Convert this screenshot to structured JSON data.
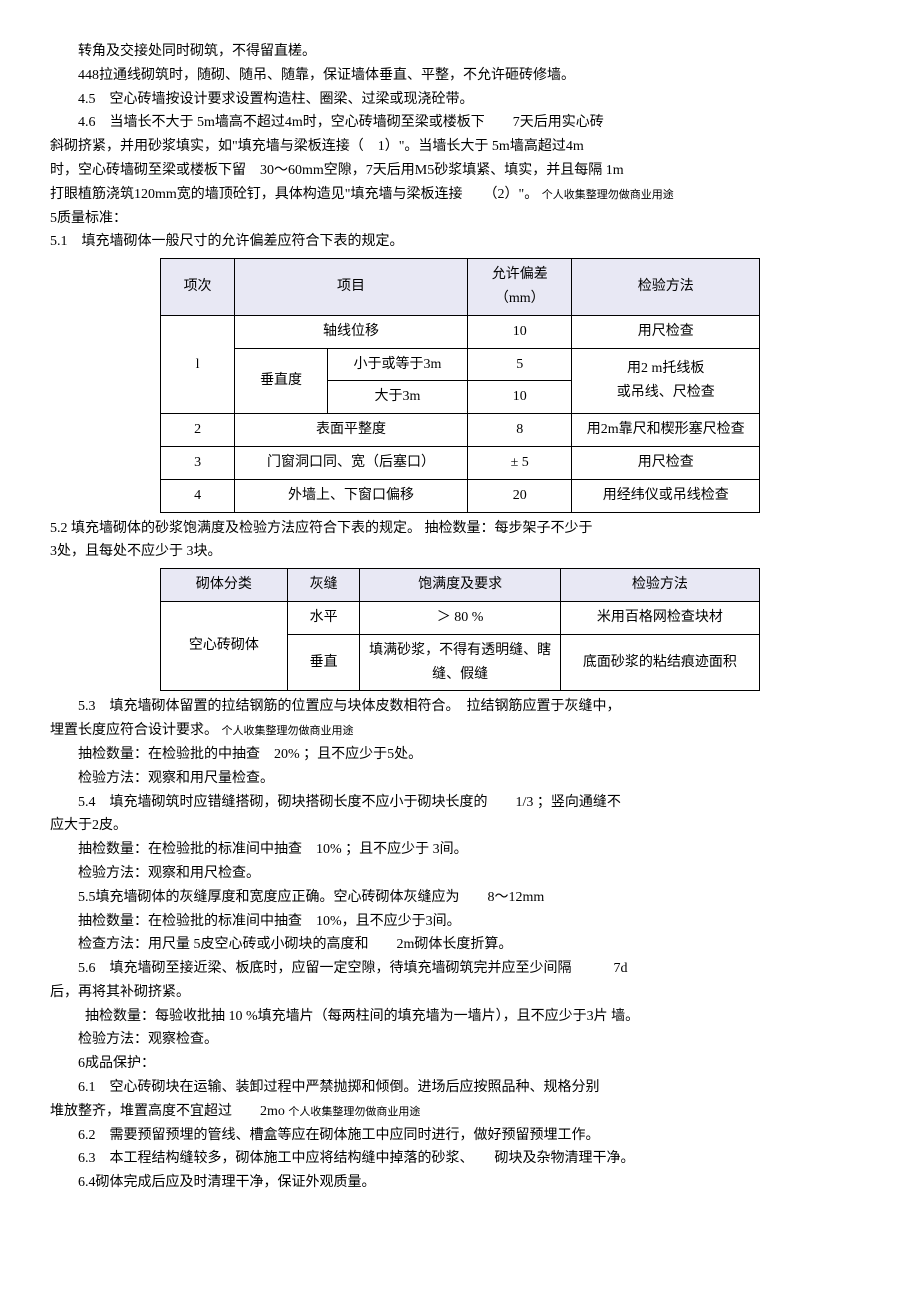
{
  "paragraphs": {
    "p1": "转角及交接处同时砌筑，不得留直槎。",
    "p2": "448拉通线砌筑时，随砌、随吊、随靠，保证墙体垂直、平整，不允许砸砖修墙。",
    "p3": "4.5　空心砖墙按设计要求设置构造柱、圈梁、过梁或现浇砼带。",
    "p4a": "4.6　当墙长不大于 5m墙高不超过4m时，空心砖墙砌至梁或楼板下　　7天后用实心砖",
    "p4b": "斜砌挤紧，并用砂浆填实，如\"填充墙与梁板连接（　1）\"。当墙长大于 5m墙高超过4m",
    "p4c": "时，空心砖墙砌至梁或楼板下留　30～60mm空隙，7天后用M5砂浆填紧、填实，并且每隔 1m",
    "p4d": "打眼植筋浇筑120mm宽的墙顶砼钉，具体构造见\"填充墙与梁板连接　　（2）\"。",
    "p4note": "个人收集整理勿做商业用途",
    "p5": "5质量标准：",
    "p6": "5.1　填充墙砌体一般尺寸的允许偏差应符合下表的规定。",
    "p7": "5.2 填充墙砌体的砂浆饱满度及检验方法应符合下表的规定。 抽检数量：每步架子不少于",
    "p7b": "3处，且每处不应少于 3块。",
    "p8a": "5.3　填充墙砌体留置的拉结钢筋的位置应与块体皮数相符合。　拉结钢筋应置于灰缝中，",
    "p8b": "埋置长度应符合设计要求。",
    "p8note": "个人收集整理勿做商业用途",
    "p9": "抽检数量：在检验批的中抽查　20% ；且不应少于5处。",
    "p10": "检验方法：观察和用尺量检查。",
    "p11a": "5.4　填充墙砌筑时应错缝搭砌，砌块搭砌长度不应小于砌块长度的　　1/3 ；竖向通缝不",
    "p11b": "应大于2皮。",
    "p12": "抽检数量：在检验批的标准间中抽查　10% ；且不应少于 3间。",
    "p13": "检验方法：观察和用尺检查。",
    "p14": "5.5填充墙砌体的灰缝厚度和宽度应正确。空心砖砌体灰缝应为　　8～12mm",
    "p15": "抽检数量：在检验批的标准间中抽查　10%，且不应少于3间。",
    "p16": "检查方法：用尺量 5皮空心砖或小砌块的高度和　　2m砌体长度折算。",
    "p17a": "5.6　填充墙砌至接近梁、板底时，应留一定空隙，待填充墙砌筑完并应至少间隔　　　7d",
    "p17b": "后，再将其补砌挤紧。",
    "p18": "抽检数量：每验收批抽 10 %填充墙片（每两柱间的填充墙为一墙片），且不应少于3片 墙。",
    "p19": "检验方法：观察检查。",
    "p20": "6成品保护：",
    "p21a": "6.1　空心砖砌块在运输、装卸过程中严禁抛掷和倾倒。进场后应按照品种、规格分别",
    "p21b": "堆放整齐，堆置高度不宜超过　　2mo",
    "p21note": "个人收集整理勿做商业用途",
    "p22": "6.2　需要预留预埋的管线、槽盒等应在砌体施工中应同时进行，做好预留预埋工作。",
    "p23": "6.3　本工程结构缝较多，砌体施工中应将结构缝中掉落的砂浆、　　砌块及杂物清理干净。",
    "p24": "6.4砌体完成后应及时清理干净，保证外观质量。"
  },
  "table1": {
    "headers": {
      "c1": "项次",
      "c2": "项目",
      "c3": "允许偏差（mm）",
      "c4": "检验方法"
    },
    "rows": [
      {
        "num": "l",
        "label_span": "轴线位移",
        "dev": "10",
        "method": "用尺检查"
      },
      {
        "sub_label": "垂直度",
        "sub1": "小于或等于3m",
        "dev1": "5",
        "sub2": "大于3m",
        "dev2": "10",
        "method": "用2 m托线板\n或吊线、尺检查"
      },
      {
        "num": "2",
        "label": "表面平整度",
        "dev": "8",
        "method": "用2m靠尺和楔形塞尺检查"
      },
      {
        "num": "3",
        "label": "门窗洞口同、宽（后塞口）",
        "dev": "± 5",
        "method": "用尺检查"
      },
      {
        "num": "4",
        "label": "外墙上、下窗口偏移",
        "dev": "20",
        "method": "用经纬仪或吊线检查"
      }
    ]
  },
  "table2": {
    "headers": {
      "c1": "砌体分类",
      "c2": "灰缝",
      "c3": "饱满度及要求",
      "c4": "检验方法"
    },
    "body": {
      "cat": "空心砖砌体",
      "r1": {
        "seam": "水平",
        "req": "＞ 80 %",
        "method": "米用百格网检查块材"
      },
      "r2": {
        "seam": "垂直",
        "req": "填满砂浆，不得有透明缝、瞎缝、假缝",
        "method": "底面砂浆的粘结痕迹面积"
      }
    }
  }
}
